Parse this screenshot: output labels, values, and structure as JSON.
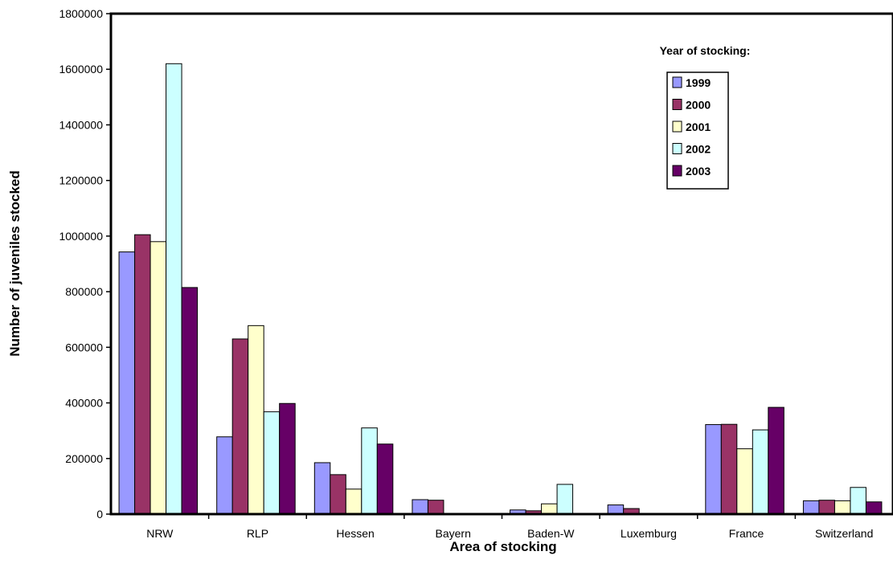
{
  "chart_data": {
    "type": "bar",
    "xlabel": "Area of stocking",
    "ylabel": "Number of juveniles stocked",
    "ylim": [
      0,
      1800000
    ],
    "ytick_step": 200000,
    "grid": false,
    "legend_position": "top-right",
    "legend_title": "Year of stocking:",
    "categories": [
      "NRW",
      "RLP",
      "Hessen",
      "Bayern",
      "Baden-W",
      "Luxemburg",
      "France",
      "Switzerland"
    ],
    "series": [
      {
        "name": "1999",
        "color": "#9999ff",
        "values": [
          943000,
          278000,
          185000,
          52000,
          15000,
          33000,
          322000,
          48000
        ]
      },
      {
        "name": "2000",
        "color": "#993366",
        "values": [
          1005000,
          630000,
          142000,
          50000,
          12000,
          20000,
          323000,
          50000
        ]
      },
      {
        "name": "2001",
        "color": "#ffffcc",
        "values": [
          980000,
          678000,
          90000,
          0,
          37000,
          0,
          235000,
          48000
        ]
      },
      {
        "name": "2002",
        "color": "#ccffff",
        "values": [
          1620000,
          368000,
          310000,
          0,
          107000,
          0,
          303000,
          96000
        ]
      },
      {
        "name": "2003",
        "color": "#660066",
        "values": [
          815000,
          398000,
          252000,
          0,
          0,
          0,
          384000,
          44000
        ]
      }
    ]
  }
}
